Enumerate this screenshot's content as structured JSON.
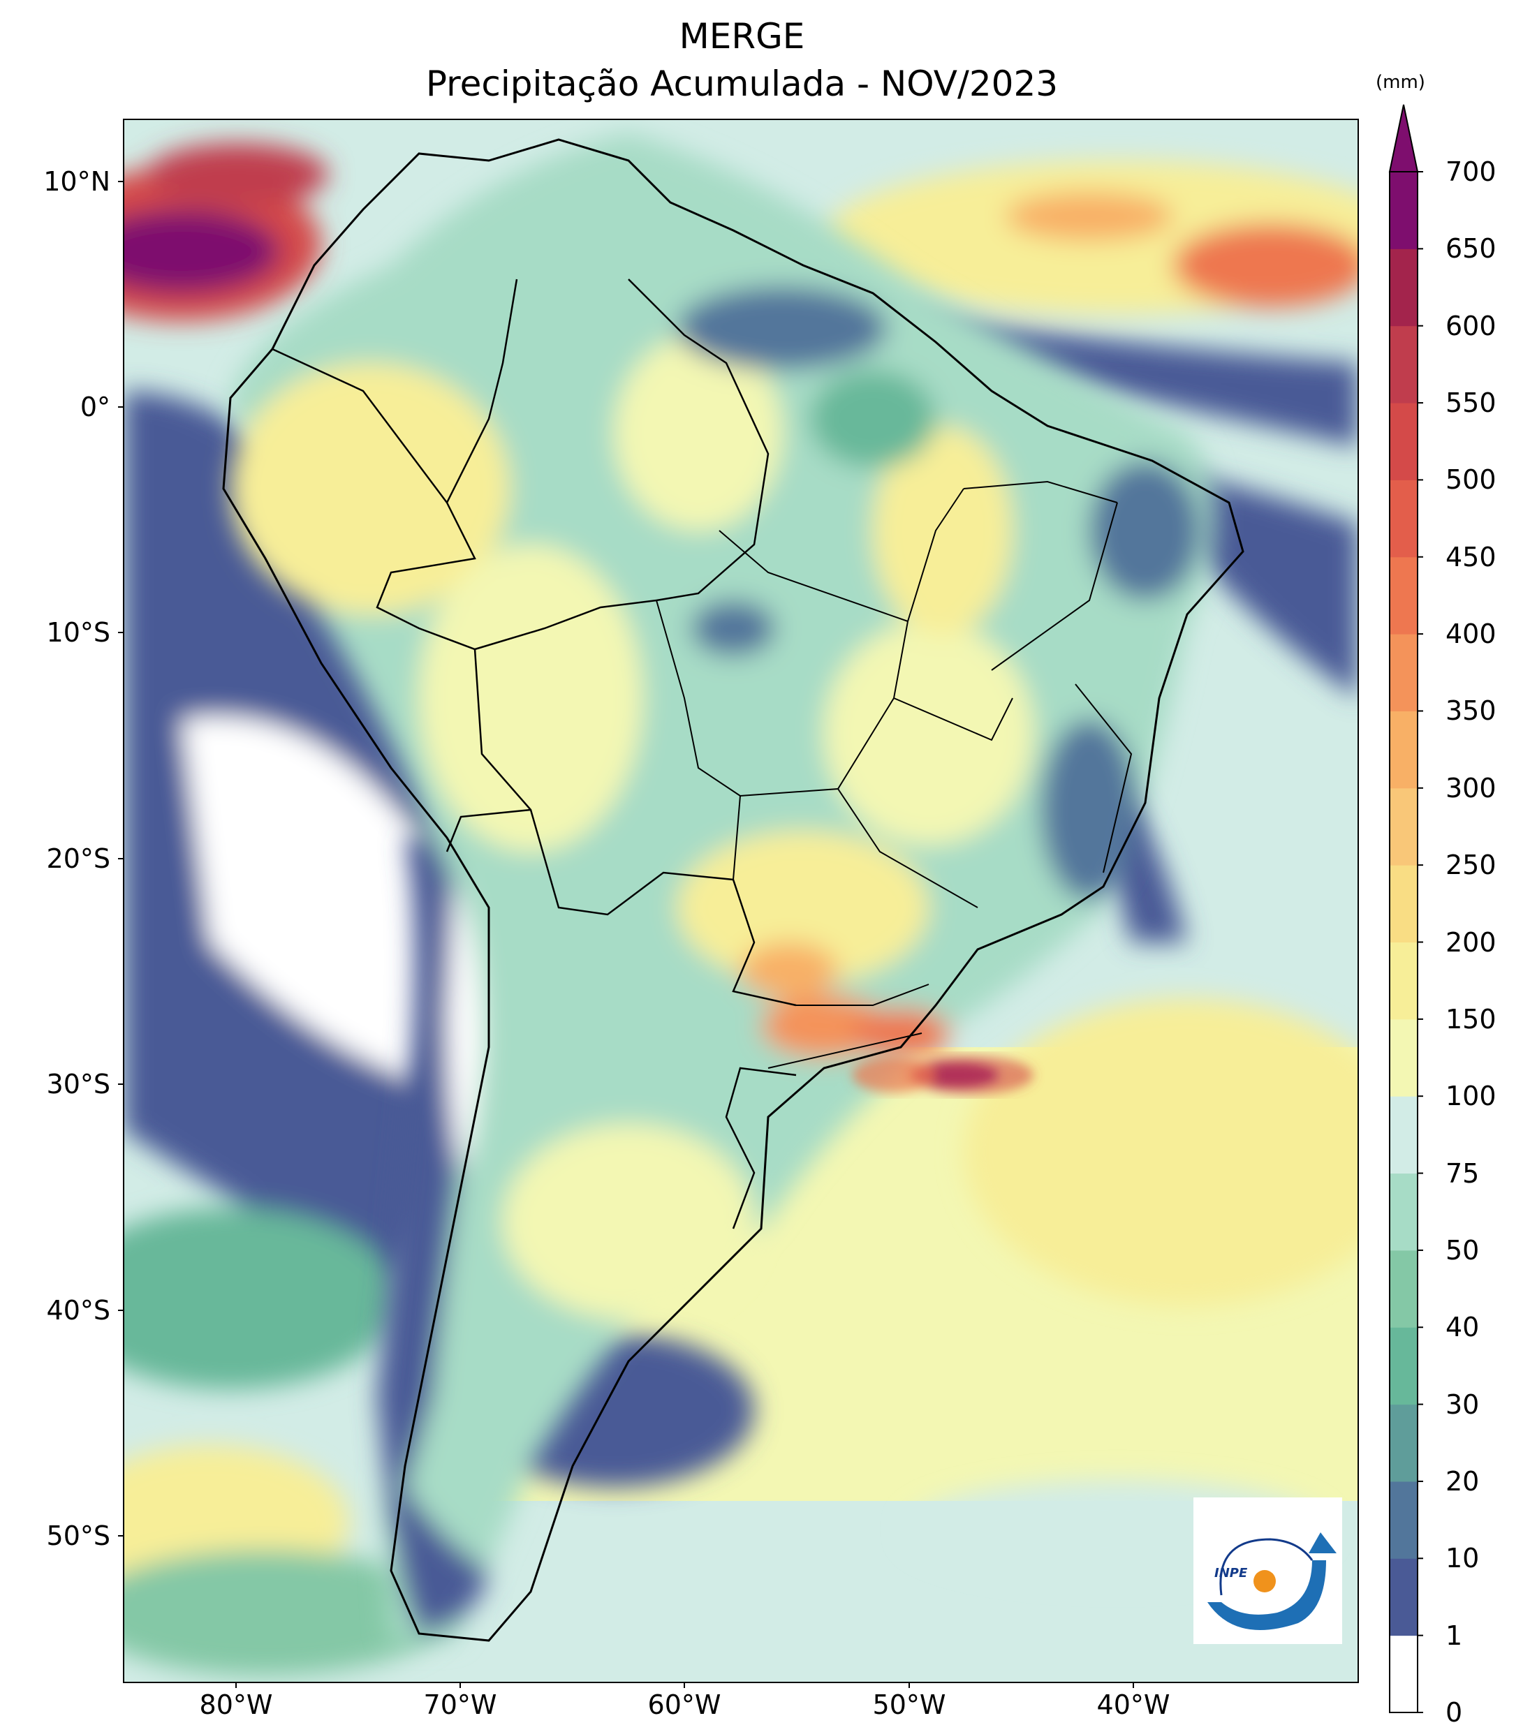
{
  "header": {
    "title": "MERGE",
    "subtitle": "Precipitação Acumulada - NOV/2023"
  },
  "map": {
    "region": "South America",
    "lon_range": [
      -85,
      -30
    ],
    "lat_range": [
      -56,
      13
    ],
    "lat_ticks": [
      {
        "value": 10,
        "label": "10°N"
      },
      {
        "value": 0,
        "label": "0°"
      },
      {
        "value": -10,
        "label": "10°S"
      },
      {
        "value": -20,
        "label": "20°S"
      },
      {
        "value": -30,
        "label": "30°S"
      },
      {
        "value": -40,
        "label": "40°S"
      },
      {
        "value": -50,
        "label": "50°S"
      }
    ],
    "lon_ticks": [
      {
        "value": -80,
        "label": "80°W"
      },
      {
        "value": -70,
        "label": "70°W"
      },
      {
        "value": -60,
        "label": "60°W"
      },
      {
        "value": -50,
        "label": "50°W"
      },
      {
        "value": -40,
        "label": "40°W"
      }
    ]
  },
  "colorbar": {
    "units": "(mm)",
    "levels": [
      0,
      1,
      10,
      20,
      30,
      40,
      50,
      75,
      100,
      150,
      200,
      250,
      300,
      350,
      400,
      450,
      500,
      550,
      600,
      650,
      700
    ],
    "labels": [
      "0",
      "1",
      "10",
      "20",
      "30",
      "40",
      "50",
      "75",
      "100",
      "150",
      "200",
      "250",
      "300",
      "350",
      "400",
      "450",
      "500",
      "550",
      "600",
      "650",
      "700"
    ],
    "colors": [
      "#ffffff",
      "#4a5a96",
      "#52769b",
      "#5f9d9a",
      "#67b89a",
      "#84c8a6",
      "#a7dcc6",
      "#d2ece6",
      "#f3f7b3",
      "#f7ee98",
      "#f9dd84",
      "#f9c778",
      "#f8b066",
      "#f4935a",
      "#ee7750",
      "#e35e4b",
      "#d44a49",
      "#c03d4d",
      "#a3244c",
      "#7e0e6e"
    ],
    "extend_color": "#7e0e6e"
  },
  "logo": {
    "text": "INPE"
  }
}
